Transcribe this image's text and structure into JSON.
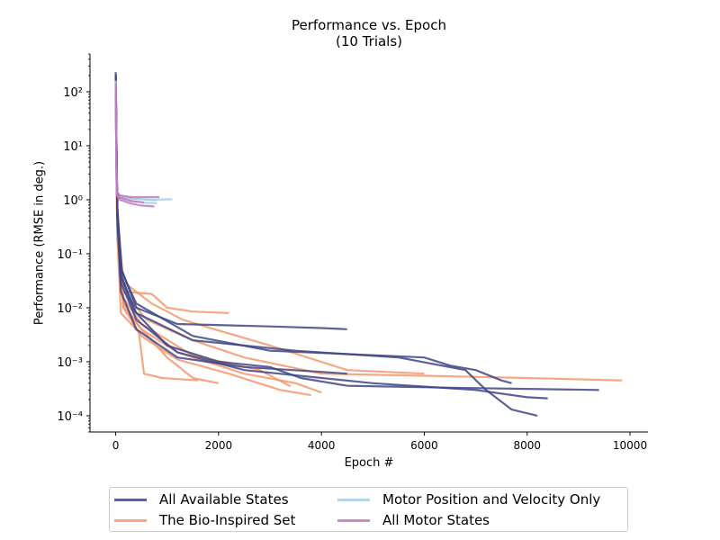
{
  "chart_data": {
    "type": "line",
    "title": "Performance vs. Epoch",
    "subtitle": "(10 Trials)",
    "xlabel": "Epoch #",
    "ylabel": "Performance (RMSE in deg.)",
    "xlim": [
      -500,
      10350
    ],
    "ylim": [
      5e-05,
      500
    ],
    "yscale": "log",
    "grid": false,
    "legend_position": "bottom-center",
    "x_ticks": [
      0,
      2000,
      4000,
      6000,
      8000,
      10000
    ],
    "x_tick_labels": [
      "0",
      "2000",
      "4000",
      "6000",
      "8000",
      "10000"
    ],
    "y_ticks": [
      0.0001,
      0.001,
      0.01,
      0.1,
      1,
      10,
      100
    ],
    "y_tick_labels": [
      "10⁻⁴",
      "10⁻³",
      "10⁻²",
      "10⁻¹",
      "10⁰",
      "10¹",
      "10²"
    ],
    "series": [
      {
        "name": "All Available States",
        "color": "#3f4686",
        "trials": [
          {
            "x": [
              0,
              30,
              100,
              400,
              1500,
              3000,
              6000,
              6500,
              7000,
              7500,
              7700
            ],
            "y": [
              200,
              0.8,
              0.05,
              0.012,
              0.003,
              0.0016,
              0.0012,
              0.00085,
              0.0007,
              0.00045,
              0.0004
            ]
          },
          {
            "x": [
              0,
              30,
              100,
              400,
              1500,
              3500,
              5500,
              6800,
              7200,
              7700,
              8200
            ],
            "y": [
              230,
              0.6,
              0.04,
              0.008,
              0.0025,
              0.0016,
              0.0012,
              0.0007,
              0.0003,
              0.00013,
              0.0001
            ]
          },
          {
            "x": [
              0,
              30,
              120,
              400,
              1200,
              3000,
              4000,
              4500
            ],
            "y": [
              150,
              0.7,
              0.05,
              0.01,
              0.005,
              0.0045,
              0.0042,
              0.004
            ]
          },
          {
            "x": [
              0,
              30,
              100,
              400,
              1200,
              2500,
              5000,
              7000,
              8000,
              8400
            ],
            "y": [
              180,
              0.5,
              0.03,
              0.006,
              0.0015,
              0.0007,
              0.0004,
              0.0003,
              0.00022,
              0.00021
            ]
          },
          {
            "x": [
              0,
              30,
              100,
              350,
              1000,
              2000,
              3000,
              3600,
              4500,
              6500,
              9400
            ],
            "y": [
              210,
              0.6,
              0.04,
              0.009,
              0.002,
              0.001,
              0.0008,
              0.0005,
              0.00036,
              0.00033,
              0.0003
            ]
          },
          {
            "x": [
              0,
              30,
              100,
              400,
              1200,
              2500,
              4000,
              4500
            ],
            "y": [
              160,
              0.5,
              0.02,
              0.004,
              0.0012,
              0.0008,
              0.00065,
              0.0006
            ]
          }
        ]
      },
      {
        "name": "The Bio-Inspired Set",
        "color": "#f4976c",
        "trials": [
          {
            "x": [
              0,
              30,
              150,
              700,
              1000,
              1500,
              2200
            ],
            "y": [
              100,
              0.4,
              0.02,
              0.018,
              0.01,
              0.0085,
              0.008
            ]
          },
          {
            "x": [
              0,
              30,
              150,
              700,
              1300,
              2000,
              3000,
              4500,
              6000
            ],
            "y": [
              150,
              0.5,
              0.03,
              0.012,
              0.006,
              0.0038,
              0.002,
              0.0007,
              0.0006
            ]
          },
          {
            "x": [
              0,
              30,
              150,
              600,
              1500,
              2500,
              4000,
              6000,
              8000,
              9850
            ],
            "y": [
              90,
              0.5,
              0.02,
              0.006,
              0.0025,
              0.0012,
              0.0006,
              0.00055,
              0.0005,
              0.00045
            ]
          },
          {
            "x": [
              0,
              30,
              150,
              500,
              1200,
              2500,
              3500,
              4000
            ],
            "y": [
              120,
              0.3,
              0.01,
              0.004,
              0.0015,
              0.0006,
              0.0004,
              0.00027
            ]
          },
          {
            "x": [
              0,
              30,
              100,
              450,
              550,
              900,
              1600
            ],
            "y": [
              80,
              0.2,
              0.008,
              0.0035,
              0.0006,
              0.0005,
              0.00045
            ]
          },
          {
            "x": [
              0,
              30,
              150,
              500,
              1000,
              1500,
              2000
            ],
            "y": [
              100,
              0.3,
              0.012,
              0.004,
              0.0012,
              0.0005,
              0.0004
            ]
          },
          {
            "x": [
              0,
              30,
              150,
              500,
              1200,
              2200,
              3200,
              3800
            ],
            "y": [
              110,
              0.3,
              0.01,
              0.003,
              0.0011,
              0.0006,
              0.0003,
              0.00024
            ]
          },
          {
            "x": [
              0,
              30,
              150,
              500,
              1500,
              2800,
              3400
            ],
            "y": [
              90,
              0.25,
              0.015,
              0.005,
              0.0013,
              0.0007,
              0.00035
            ]
          }
        ]
      },
      {
        "name": "Motor Position and Velocity Only",
        "color": "#a6cee3",
        "trials": [
          {
            "x": [
              0,
              20,
              80,
              300,
              700,
              1100
            ],
            "y": [
              160,
              1.5,
              1.2,
              1.05,
              1.0,
              1.02
            ]
          },
          {
            "x": [
              0,
              20,
              80,
              300,
              600,
              800
            ],
            "y": [
              130,
              1.4,
              1.1,
              0.95,
              0.88,
              0.86
            ]
          },
          {
            "x": [
              0,
              20,
              80,
              300,
              600,
              800
            ],
            "y": [
              140,
              1.3,
              1.15,
              1.05,
              1.0,
              0.98
            ]
          }
        ]
      },
      {
        "name": "All Motor States",
        "color": "#c078be",
        "trials": [
          {
            "x": [
              0,
              20,
              80,
              300,
              600,
              850
            ],
            "y": [
              140,
              1.4,
              1.2,
              1.12,
              1.12,
              1.12
            ]
          },
          {
            "x": [
              0,
              20,
              80,
              300,
              500,
              750
            ],
            "y": [
              120,
              1.2,
              1.0,
              0.85,
              0.78,
              0.75
            ]
          },
          {
            "x": [
              0,
              20,
              80,
              300,
              500,
              550
            ],
            "y": [
              110,
              1.3,
              1.1,
              0.95,
              0.9,
              0.88
            ]
          }
        ]
      }
    ]
  }
}
